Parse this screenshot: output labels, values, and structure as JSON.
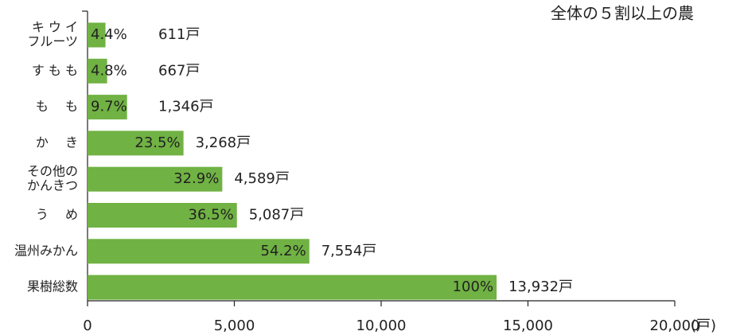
{
  "chart_data": {
    "type": "hbar",
    "title": "全体の５割以上の農",
    "categories": [
      [
        "キ ウ イ",
        "フルーツ"
      ],
      [
        "す も も"
      ],
      [
        "も　 も"
      ],
      [
        "か　 き"
      ],
      [
        "その他の",
        "かんきつ"
      ],
      [
        "う　 め"
      ],
      [
        "温州みかん"
      ],
      [
        "果樹総数"
      ]
    ],
    "values": [
      611,
      667,
      1346,
      3268,
      4589,
      5087,
      7554,
      13932
    ],
    "value_labels": [
      "611戸",
      "667戸",
      "1,346戸",
      "3,268戸",
      "4,589戸",
      "5,087戸",
      "7,554戸",
      "13,932戸"
    ],
    "percent_labels": [
      "4.4%",
      "4.8%",
      "9.7%",
      "23.5%",
      "32.9%",
      "36.5%",
      "54.2%",
      "100%"
    ],
    "color": "#70b243",
    "xlim": [
      0,
      20000
    ],
    "xticks": [
      0,
      {
        "value": 5000,
        "label": "5,000"
      },
      {
        "value": 10000,
        "label": "10,000"
      },
      {
        "value": 15000,
        "label": "15,000"
      },
      {
        "value": 20000,
        "label": "20,000"
      }
    ],
    "x_unit": "(戸)"
  }
}
